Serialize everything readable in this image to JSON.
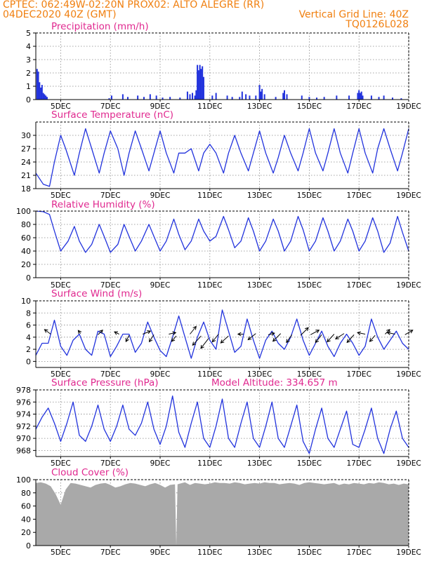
{
  "header": {
    "line1": "CPTEC:   062:49W-02:20N   PROX02: ALTO ALEGRE (RR)",
    "date": "04DEC2020 40Z (GMT)",
    "grid_note": "Vertical Grid Line: 40Z",
    "code": "TQ0126L028"
  },
  "colors": {
    "header": "#f07f0f",
    "panel_title": "#e0288f",
    "series": "#2233dd",
    "cloud": "#a9a9a9",
    "grid": "#888888"
  },
  "x_axis": {
    "ticks": [
      "5DEC",
      "7DEC",
      "9DEC",
      "11DEC",
      "13DEC",
      "15DEC",
      "17DEC",
      "19DEC"
    ],
    "tick_days": [
      5,
      7,
      9,
      11,
      13,
      15,
      17,
      19
    ],
    "range_days": [
      4.0,
      19.0
    ]
  },
  "chart_data": [
    {
      "id": "precip",
      "type": "bar",
      "title": "Precipitation (mm/h)",
      "ylim": [
        0,
        5
      ],
      "yticks": [
        "0",
        "1",
        "2",
        "3",
        "4",
        "5"
      ],
      "x": [
        4.05,
        4.1,
        4.15,
        4.2,
        4.25,
        4.3,
        4.35,
        4.4,
        4.45,
        6.95,
        7.05,
        7.5,
        7.7,
        8.1,
        8.35,
        8.6,
        8.85,
        9.1,
        9.4,
        9.8,
        10.1,
        10.2,
        10.3,
        10.4,
        10.45,
        10.5,
        10.55,
        10.6,
        10.65,
        10.7,
        10.75,
        11.1,
        11.25,
        11.7,
        11.9,
        12.2,
        12.3,
        12.45,
        12.6,
        12.85,
        13.0,
        13.05,
        13.1,
        13.2,
        13.65,
        13.95,
        14.0,
        14.1,
        14.7,
        15.0,
        15.3,
        15.6,
        16.1,
        16.6,
        16.95,
        17.0,
        17.05,
        17.1,
        17.15,
        17.5,
        17.8,
        18.0,
        18.35,
        18.7
      ],
      "values": [
        2.3,
        2.1,
        1.3,
        0.9,
        1.1,
        0.5,
        0.4,
        0.3,
        0.2,
        0.1,
        0.3,
        0.4,
        0.2,
        0.3,
        0.2,
        0.4,
        0.3,
        0.15,
        0.2,
        0.15,
        0.6,
        0.4,
        0.5,
        0.3,
        0.7,
        2.6,
        2.2,
        2.6,
        2.3,
        2.5,
        1.7,
        0.3,
        0.5,
        0.3,
        0.2,
        0.2,
        0.6,
        0.4,
        0.3,
        0.3,
        1.1,
        0.6,
        0.8,
        0.4,
        0.2,
        0.5,
        0.7,
        0.4,
        0.3,
        0.2,
        0.15,
        0.2,
        0.3,
        0.3,
        0.5,
        0.7,
        0.5,
        0.6,
        0.3,
        0.3,
        0.2,
        0.3,
        0.15,
        0.1
      ]
    },
    {
      "id": "temp",
      "type": "line",
      "title": "Surface Temperature (nC)",
      "ylim": [
        18,
        33
      ],
      "yticks": [
        "18",
        "21",
        "24",
        "27",
        "30"
      ],
      "ytick_values": [
        18,
        21,
        24,
        27,
        30
      ],
      "x": [
        4.0,
        4.3,
        4.55,
        4.75,
        5.0,
        5.2,
        5.55,
        5.75,
        6.0,
        6.25,
        6.55,
        6.75,
        7.0,
        7.3,
        7.55,
        7.75,
        8.0,
        8.25,
        8.55,
        8.75,
        9.0,
        9.25,
        9.55,
        9.75,
        10.0,
        10.25,
        10.55,
        10.75,
        11.0,
        11.25,
        11.55,
        11.75,
        12.0,
        12.25,
        12.55,
        12.75,
        13.0,
        13.25,
        13.55,
        13.75,
        14.0,
        14.25,
        14.55,
        14.75,
        15.0,
        15.25,
        15.55,
        15.75,
        16.0,
        16.25,
        16.55,
        16.75,
        17.0,
        17.25,
        17.55,
        17.75,
        18.0,
        18.25,
        18.55,
        18.75,
        19.0
      ],
      "values": [
        21.5,
        19,
        18.5,
        24,
        30,
        27,
        21,
        26,
        31.5,
        27,
        21.5,
        26,
        31,
        27,
        21,
        26,
        31,
        27,
        22,
        26,
        31,
        26,
        21.5,
        26,
        26,
        27,
        22,
        26,
        28,
        26,
        21.5,
        26,
        30,
        26,
        22,
        26,
        31,
        26,
        21.5,
        25,
        30,
        26,
        22,
        26,
        31.5,
        26,
        22,
        26,
        31.5,
        26,
        21.5,
        26,
        31.5,
        26,
        21.5,
        27,
        31.5,
        27,
        22,
        26,
        31.5
      ]
    },
    {
      "id": "rh",
      "type": "line",
      "title": "Relative Humidity (%)",
      "ylim": [
        0,
        100
      ],
      "yticks": [
        "0",
        "20",
        "40",
        "60",
        "80",
        "100"
      ],
      "x": [
        4.0,
        4.3,
        4.55,
        4.75,
        5.0,
        5.3,
        5.55,
        5.75,
        6.0,
        6.25,
        6.55,
        6.75,
        7.0,
        7.3,
        7.55,
        7.75,
        8.0,
        8.25,
        8.55,
        8.75,
        9.0,
        9.25,
        9.55,
        9.75,
        10.0,
        10.25,
        10.55,
        10.75,
        11.0,
        11.25,
        11.55,
        11.75,
        12.0,
        12.25,
        12.55,
        12.75,
        13.0,
        13.25,
        13.55,
        13.75,
        14.0,
        14.25,
        14.55,
        14.75,
        15.0,
        15.25,
        15.55,
        15.75,
        16.0,
        16.25,
        16.55,
        16.75,
        17.0,
        17.25,
        17.55,
        17.75,
        18.0,
        18.25,
        18.55,
        18.75,
        19.0
      ],
      "values": [
        100,
        99,
        95,
        70,
        40,
        55,
        77,
        55,
        38,
        50,
        80,
        62,
        38,
        50,
        80,
        62,
        40,
        55,
        80,
        62,
        40,
        55,
        88,
        65,
        42,
        55,
        88,
        70,
        55,
        62,
        92,
        72,
        45,
        55,
        90,
        70,
        40,
        55,
        88,
        70,
        40,
        55,
        92,
        72,
        40,
        55,
        90,
        70,
        40,
        55,
        88,
        70,
        40,
        55,
        90,
        70,
        38,
        52,
        92,
        68,
        40
      ]
    },
    {
      "id": "wind",
      "type": "line",
      "title": "Surface Wind (m/s)",
      "ylim": [
        -1,
        10
      ],
      "yticks": [
        "0",
        "2",
        "4",
        "6",
        "8",
        "10"
      ],
      "ytick_values": [
        0,
        2,
        4,
        6,
        8,
        10
      ],
      "x": [
        4.0,
        4.25,
        4.5,
        4.75,
        5.0,
        5.25,
        5.5,
        5.75,
        6.0,
        6.25,
        6.5,
        6.75,
        7.0,
        7.25,
        7.5,
        7.75,
        8.0,
        8.25,
        8.5,
        8.75,
        9.0,
        9.25,
        9.5,
        9.75,
        10.0,
        10.25,
        10.5,
        10.75,
        11.0,
        11.25,
        11.5,
        11.75,
        12.0,
        12.25,
        12.5,
        12.75,
        13.0,
        13.25,
        13.5,
        13.75,
        14.0,
        14.25,
        14.5,
        14.75,
        15.0,
        15.25,
        15.5,
        15.75,
        16.0,
        16.25,
        16.5,
        16.75,
        17.0,
        17.25,
        17.5,
        17.75,
        18.0,
        18.25,
        18.5,
        18.75,
        19.0
      ],
      "values": [
        1,
        3,
        3,
        6.8,
        2.5,
        1,
        3.5,
        4.5,
        2,
        1,
        5,
        4.5,
        0.8,
        2.5,
        4.5,
        4.5,
        1.5,
        3,
        6.5,
        4,
        1.8,
        0.8,
        4,
        7.5,
        4,
        0.5,
        4,
        6.5,
        3.5,
        2,
        8.5,
        5,
        1.5,
        2.5,
        7,
        3.5,
        0.5,
        3.5,
        5,
        3,
        2,
        4,
        7,
        3.5,
        1,
        3,
        5,
        2.5,
        0.8,
        3,
        4.5,
        3,
        1,
        2.5,
        7,
        4,
        2,
        3.5,
        5,
        3,
        2
      ],
      "arrows": {
        "x": [
          4.6,
          5.8,
          6.5,
          7.35,
          7.75,
          8.3,
          8.75,
          9.35,
          9.65,
          10.2,
          10.65,
          10.95,
          11.35,
          11.75,
          12.35,
          12.85,
          13.35,
          13.85,
          14.3,
          14.65,
          15.05,
          15.5,
          16.0,
          16.4,
          16.8,
          17.25,
          17.65,
          18.05,
          18.45,
          18.85
        ],
        "y": [
          4.5,
          4.6,
          4.4,
          4.5,
          4.3,
          4.5,
          4.4,
          4.5,
          4.2,
          4.5,
          4.2,
          3.8,
          4.5,
          4.2,
          4.5,
          4.6,
          4.4,
          4.6,
          4.4,
          4.3,
          4.4,
          4.4,
          4.5,
          4.6,
          4.4,
          4.5,
          4.3,
          4.5,
          4.5,
          4.4
        ],
        "u": [
          -0.4,
          -0.15,
          0.3,
          -0.3,
          -0.2,
          0.5,
          -0.3,
          0.45,
          -0.3,
          0.4,
          -0.55,
          -0.5,
          -0.4,
          -0.5,
          -0.35,
          -0.5,
          0.4,
          -0.5,
          -0.35,
          0.5,
          0.55,
          -0.4,
          -0.45,
          -0.55,
          -0.45,
          -0.5,
          -0.35,
          0.3,
          -0.5,
          0.5
        ],
        "v": [
          0.3,
          0.2,
          0.3,
          0.15,
          -0.4,
          0.2,
          -0.45,
          0.1,
          -0.35,
          0.5,
          -0.6,
          -0.65,
          -0.5,
          -0.45,
          0,
          -0.4,
          0.1,
          -0.5,
          -0.5,
          0.5,
          0.3,
          -0.5,
          -0.5,
          -0.35,
          -0.5,
          0.1,
          -0.4,
          0.3,
          0.1,
          0.3
        ]
      }
    },
    {
      "id": "pres",
      "type": "line",
      "title": "Surface Pressure (hPa)",
      "subtitle": "Model Altitude: 334.657 m",
      "ylim": [
        967,
        978
      ],
      "yticks": [
        "968",
        "970",
        "972",
        "974",
        "976",
        "978"
      ],
      "ytick_values": [
        968,
        970,
        972,
        974,
        976,
        978
      ],
      "x": [
        4.0,
        4.25,
        4.5,
        4.75,
        5.0,
        5.25,
        5.5,
        5.75,
        6.0,
        6.25,
        6.5,
        6.75,
        7.0,
        7.25,
        7.5,
        7.75,
        8.0,
        8.25,
        8.5,
        8.75,
        9.0,
        9.25,
        9.5,
        9.75,
        10.0,
        10.25,
        10.5,
        10.75,
        11.0,
        11.25,
        11.5,
        11.75,
        12.0,
        12.25,
        12.5,
        12.75,
        13.0,
        13.25,
        13.5,
        13.75,
        14.0,
        14.25,
        14.5,
        14.75,
        15.0,
        15.25,
        15.5,
        15.75,
        16.0,
        16.25,
        16.5,
        16.75,
        17.0,
        17.25,
        17.5,
        17.75,
        18.0,
        18.25,
        18.5,
        18.75,
        19.0
      ],
      "values": [
        971.5,
        973.5,
        975,
        972.5,
        969.5,
        972.5,
        976,
        970.5,
        969.5,
        972,
        975.5,
        971.5,
        969.5,
        972,
        975.5,
        971.5,
        970.5,
        972.5,
        976,
        971.5,
        969,
        972,
        977,
        971,
        968.5,
        972.5,
        976,
        970,
        968.5,
        972,
        976.5,
        970,
        968.5,
        972.5,
        976,
        970,
        968.5,
        972,
        976,
        970,
        968.5,
        972,
        975.5,
        969.5,
        967.5,
        971.5,
        975,
        970,
        968.5,
        971.5,
        974.5,
        969,
        968.5,
        971.5,
        975,
        970,
        967.5,
        971.5,
        974.5,
        970,
        968.5
      ]
    },
    {
      "id": "cloud",
      "type": "area",
      "title": "Cloud Cover (%)",
      "ylim": [
        0,
        100
      ],
      "yticks": [
        "0",
        "20",
        "40",
        "60",
        "80",
        "100"
      ],
      "x": [
        4.0,
        4.2,
        4.4,
        4.6,
        4.8,
        5.0,
        5.2,
        5.4,
        5.6,
        5.8,
        6.0,
        6.2,
        6.4,
        6.6,
        6.8,
        7.0,
        7.2,
        7.4,
        7.6,
        7.8,
        8.0,
        8.2,
        8.4,
        8.6,
        8.8,
        9.0,
        9.2,
        9.4,
        9.6,
        9.65,
        9.7,
        9.8,
        10.0,
        10.2,
        10.4,
        10.6,
        10.8,
        11.0,
        11.2,
        11.4,
        11.6,
        11.8,
        12.0,
        12.2,
        12.4,
        12.6,
        12.8,
        13.0,
        13.2,
        13.4,
        13.6,
        13.8,
        14.0,
        14.2,
        14.4,
        14.6,
        14.8,
        15.0,
        15.2,
        15.4,
        15.6,
        15.8,
        16.0,
        16.2,
        16.4,
        16.6,
        16.8,
        17.0,
        17.2,
        17.4,
        17.6,
        17.8,
        18.0,
        18.2,
        18.4,
        18.6,
        18.8,
        19.0
      ],
      "values": [
        95,
        96,
        94,
        90,
        78,
        62,
        85,
        95,
        94,
        92,
        90,
        88,
        92,
        94,
        95,
        92,
        88,
        90,
        93,
        95,
        94,
        92,
        90,
        93,
        95,
        92,
        88,
        92,
        93,
        0,
        93,
        94,
        96,
        92,
        95,
        94,
        93,
        94,
        96,
        95,
        95,
        94,
        96,
        95,
        93,
        94,
        95,
        94,
        96,
        95,
        95,
        93,
        94,
        95,
        94,
        92,
        95,
        96,
        95,
        94,
        93,
        94,
        95,
        92,
        94,
        93,
        95,
        94,
        93,
        95,
        94,
        96,
        95,
        93,
        94,
        92,
        94,
        93
      ]
    }
  ]
}
